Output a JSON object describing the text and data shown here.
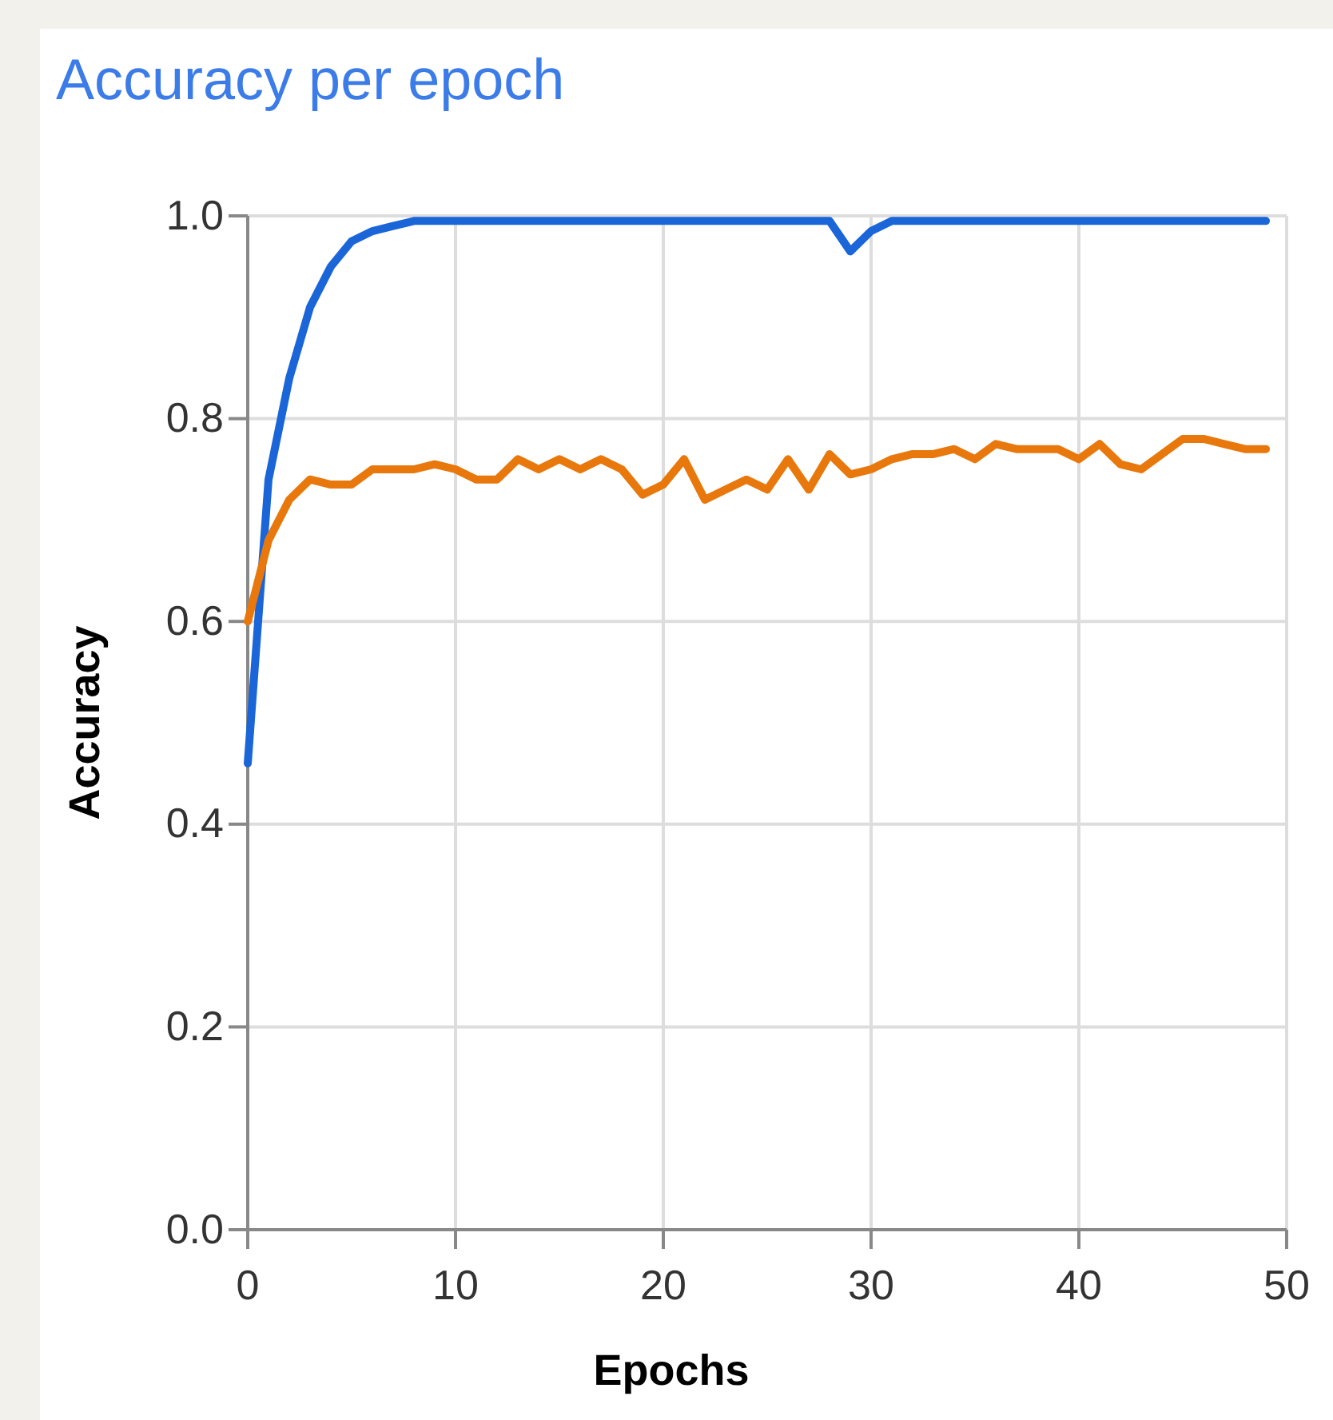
{
  "chart_data": {
    "type": "line",
    "title": "Accuracy per epoch",
    "xlabel": "Epochs",
    "ylabel": "Accuracy",
    "x": [
      0,
      1,
      2,
      3,
      4,
      5,
      6,
      7,
      8,
      9,
      10,
      11,
      12,
      13,
      14,
      15,
      16,
      17,
      18,
      19,
      20,
      21,
      22,
      23,
      24,
      25,
      26,
      27,
      28,
      29,
      30,
      31,
      32,
      33,
      34,
      35,
      36,
      37,
      38,
      39,
      40,
      41,
      42,
      43,
      44,
      45,
      46,
      47,
      48,
      49
    ],
    "series": [
      {
        "color": "#1a66d9",
        "values": [
          0.46,
          0.74,
          0.84,
          0.91,
          0.95,
          0.975,
          0.985,
          0.99,
          0.995,
          0.995,
          0.995,
          0.995,
          0.995,
          0.995,
          0.995,
          0.995,
          0.995,
          0.995,
          0.995,
          0.995,
          0.995,
          0.995,
          0.995,
          0.995,
          0.995,
          0.995,
          0.995,
          0.995,
          0.995,
          0.965,
          0.985,
          0.995,
          0.995,
          0.995,
          0.995,
          0.995,
          0.995,
          0.995,
          0.995,
          0.995,
          0.995,
          0.995,
          0.995,
          0.995,
          0.995,
          0.995,
          0.995,
          0.995,
          0.995,
          0.995
        ]
      },
      {
        "color": "#e8780b",
        "values": [
          0.6,
          0.68,
          0.72,
          0.74,
          0.735,
          0.735,
          0.75,
          0.75,
          0.75,
          0.755,
          0.75,
          0.74,
          0.74,
          0.76,
          0.75,
          0.76,
          0.75,
          0.76,
          0.75,
          0.725,
          0.735,
          0.76,
          0.72,
          0.73,
          0.74,
          0.73,
          0.76,
          0.73,
          0.765,
          0.745,
          0.75,
          0.76,
          0.765,
          0.765,
          0.77,
          0.76,
          0.775,
          0.77,
          0.77,
          0.77,
          0.76,
          0.775,
          0.755,
          0.75,
          0.765,
          0.78,
          0.78,
          0.775,
          0.77,
          0.77
        ]
      }
    ],
    "xlim": [
      0,
      50
    ],
    "xticks": [
      0,
      10,
      20,
      30,
      40,
      50
    ],
    "ylim": [
      0,
      1
    ],
    "yticks": [
      {
        "value": 0,
        "label": "0.0"
      },
      0.2,
      0.4,
      0.6,
      0.8,
      {
        "value": 1,
        "label": "1.0"
      }
    ],
    "grid": true,
    "line_style": "solid",
    "marker": "none"
  }
}
